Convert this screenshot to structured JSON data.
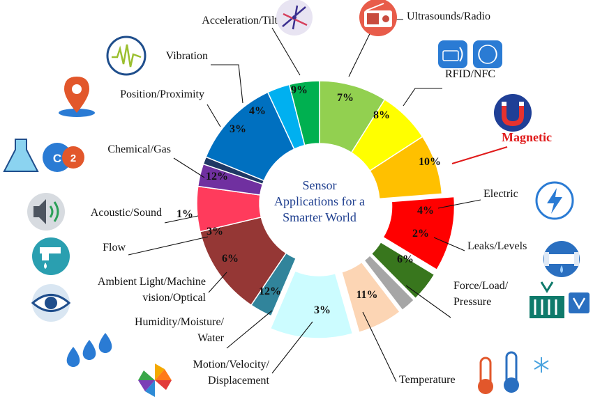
{
  "chart_data": {
    "type": "pie",
    "title": "Sensor Applications for a Smarter World",
    "title_lines": [
      "Sensor",
      "Applications for a",
      "Smarter World"
    ],
    "unit": "%",
    "slices": [
      {
        "label": "Acceleration/Tilt",
        "value": 9,
        "color": "#92d050"
      },
      {
        "label": "Ultrasounds/Radio",
        "value": 7,
        "color": "#ffff00"
      },
      {
        "label": "RFID/NFC",
        "value": 8,
        "color": "#ffc000"
      },
      {
        "label": "Magnetic",
        "value": 10,
        "color": "#ff0000",
        "exploded": true
      },
      {
        "label": "Electric",
        "value": 4,
        "color": "#38761d",
        "exploded": true
      },
      {
        "label": "Leaks/Levels",
        "value": 2,
        "color": "#a6a6a6",
        "exploded": true
      },
      {
        "label": "Force/Load/Pressure",
        "label_lines": [
          "Force/Load/",
          "Pressure"
        ],
        "value": 6,
        "color": "#fcd5b4",
        "exploded": true
      },
      {
        "label": "Temperature",
        "value": 11,
        "color": "#ccfcff",
        "exploded": true
      },
      {
        "label": "Motion/Velocity/Displacement",
        "label_lines": [
          "Motion/Velocity/",
          "Displacement"
        ],
        "value": 3,
        "color": "#31849b"
      },
      {
        "label": "Humidity/Moisture/Water",
        "label_lines": [
          "Humidity/Moisture/",
          "Water"
        ],
        "value": 12,
        "color": "#953735"
      },
      {
        "label": "Ambient Light/Machine vision/Optical",
        "label_lines": [
          "Ambient Light/Machine",
          "vision/Optical"
        ],
        "value": 6,
        "color": "#ff3b5c"
      },
      {
        "label": "Flow",
        "value": 3,
        "color": "#7030a0"
      },
      {
        "label": "Acoustic/Sound",
        "value": 1,
        "color": "#1f3864"
      },
      {
        "label": "Chemical/Gas",
        "value": 12,
        "color": "#0070c0"
      },
      {
        "label": "Position/Proximity",
        "value": 3,
        "color": "#00b0f0"
      },
      {
        "label": "Vibration",
        "value": 4,
        "color": "#00b050"
      }
    ],
    "highlighted_label": "Magnetic",
    "highlight_color": "#e01b1b",
    "icons": [
      "axes-icon",
      "radio-icon",
      "rfid-nfc-icon",
      "magnet-icon",
      "lightning-icon",
      "pipe-level-icon",
      "pressure-gauge-icon",
      "thermometer-snowflake-icon",
      "pinwheel-icon",
      "water-drops-icon",
      "eye-icon",
      "faucet-icon",
      "speaker-icon",
      "flask-co2-icon",
      "location-pin-icon",
      "waveform-icon"
    ]
  }
}
